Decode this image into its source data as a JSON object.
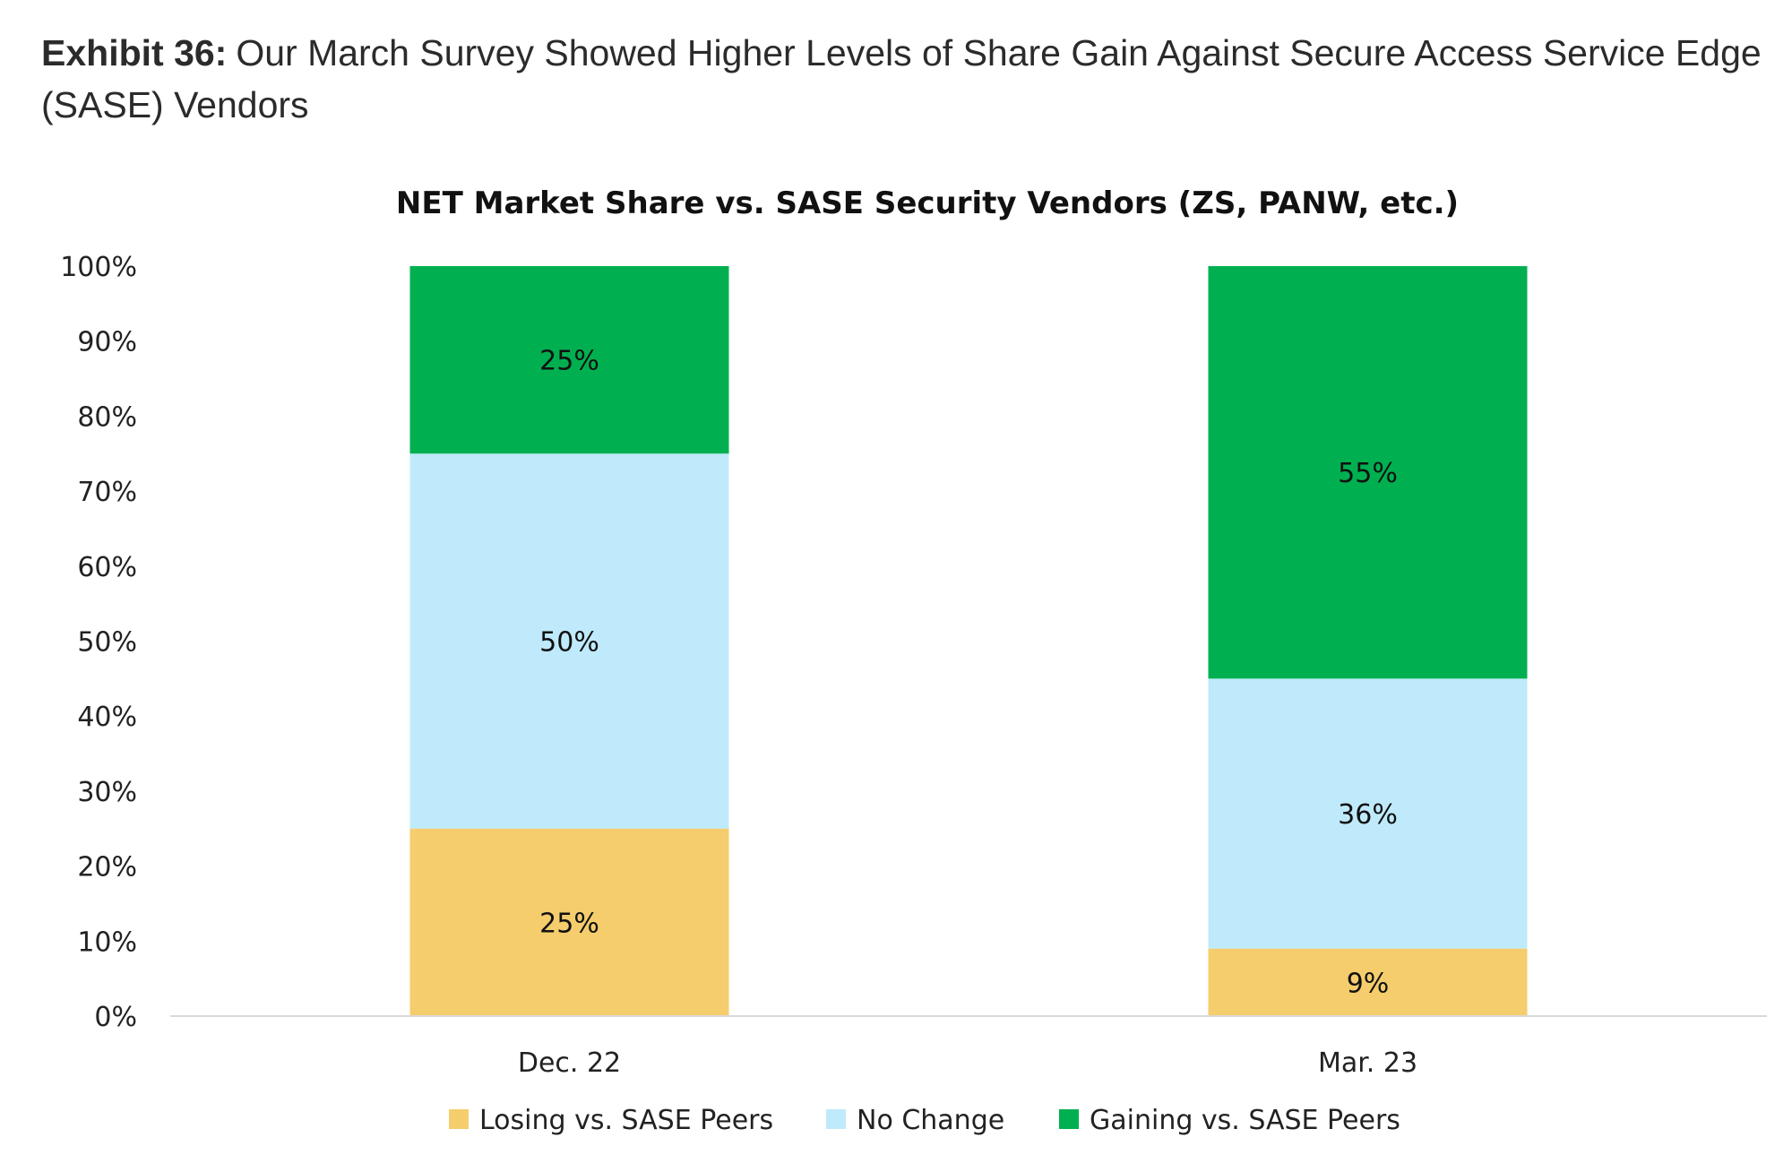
{
  "exhibit": {
    "label": "Exhibit 36:",
    "text": "Our March Survey Showed Higher Levels of Share Gain Against Secure Access Service Edge (SASE) Vendors"
  },
  "chart_data": {
    "type": "bar",
    "stacked": true,
    "title": "NET Market Share vs. SASE Security Vendors (ZS, PANW, etc.)",
    "xlabel": "",
    "ylabel": "",
    "categories": [
      "Dec. 22",
      "Mar. 23"
    ],
    "ylim": [
      0,
      100
    ],
    "y_ticks": [
      "0%",
      "10%",
      "20%",
      "30%",
      "40%",
      "50%",
      "60%",
      "70%",
      "80%",
      "90%",
      "100%"
    ],
    "grid": false,
    "legend_position": "bottom",
    "series": [
      {
        "name": "Losing vs. SASE Peers",
        "values": [
          25,
          9
        ],
        "labels": [
          "25%",
          "9%"
        ],
        "color": "#F5CD6C"
      },
      {
        "name": "No Change",
        "values": [
          50,
          36
        ],
        "labels": [
          "50%",
          "36%"
        ],
        "color": "#BFEAFB"
      },
      {
        "name": "Gaining vs. SASE Peers",
        "values": [
          25,
          55
        ],
        "labels": [
          "25%",
          "55%"
        ],
        "color": "#00B050"
      }
    ]
  }
}
